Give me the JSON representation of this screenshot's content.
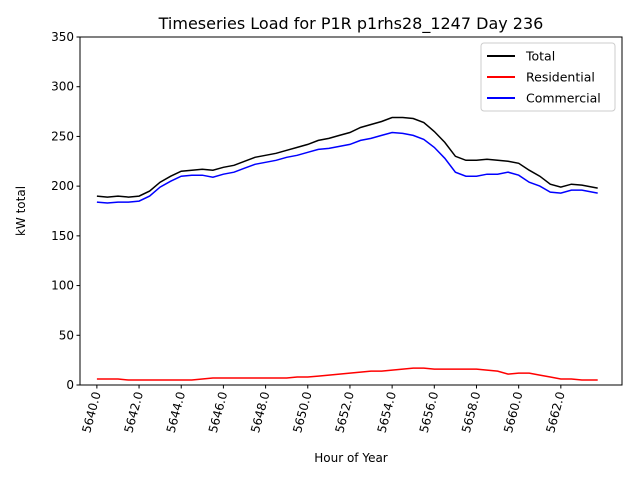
{
  "chart_data": {
    "type": "line",
    "title": "Timeseries Load for P1R p1rhs28_1247  Day 236",
    "xlabel": "Hour of Year",
    "ylabel": "kW total",
    "xlim": [
      5639.2,
      5664.9
    ],
    "ylim": [
      0,
      350
    ],
    "xticks": [
      5640,
      5642,
      5644,
      5646,
      5648,
      5650,
      5652,
      5654,
      5656,
      5658,
      5660,
      5662
    ],
    "xtick_labels": [
      "5640.0",
      "5642.0",
      "5644.0",
      "5646.0",
      "5648.0",
      "5650.0",
      "5652.0",
      "5654.0",
      "5656.0",
      "5658.0",
      "5660.0",
      "5662.0"
    ],
    "yticks": [
      0,
      50,
      100,
      150,
      200,
      250,
      300,
      350
    ],
    "ytick_labels": [
      "0",
      "50",
      "100",
      "150",
      "200",
      "250",
      "300",
      "350"
    ],
    "legend_placement": "top-right",
    "x": [
      5640,
      5640.5,
      5641,
      5641.5,
      5642,
      5642.5,
      5643,
      5643.5,
      5644,
      5644.5,
      5645,
      5645.5,
      5646,
      5646.5,
      5647,
      5647.5,
      5648,
      5648.5,
      5649,
      5649.5,
      5650,
      5650.5,
      5651,
      5651.5,
      5652,
      5652.5,
      5653,
      5653.5,
      5654,
      5654.5,
      5655,
      5655.5,
      5656,
      5656.5,
      5657,
      5657.5,
      5658,
      5658.5,
      5659,
      5659.5,
      5660,
      5660.5,
      5661,
      5661.5,
      5662,
      5662.5,
      5663,
      5663.75
    ],
    "series": [
      {
        "name": "Total",
        "color": "#000000",
        "values": [
          190,
          189,
          190,
          189,
          190,
          195,
          204,
          210,
          215,
          216,
          217,
          216,
          219,
          221,
          225,
          229,
          231,
          233,
          236,
          239,
          242,
          246,
          248,
          251,
          254,
          259,
          262,
          265,
          269,
          269,
          268,
          264,
          255,
          244,
          230,
          226,
          226,
          227,
          226,
          225,
          223,
          216,
          210,
          202,
          199,
          202,
          201,
          198
        ]
      },
      {
        "name": "Residential",
        "color": "#ff0000",
        "values": [
          6,
          6,
          6,
          5,
          5,
          5,
          5,
          5,
          5,
          5,
          6,
          7,
          7,
          7,
          7,
          7,
          7,
          7,
          7,
          8,
          8,
          9,
          10,
          11,
          12,
          13,
          14,
          14,
          15,
          16,
          17,
          17,
          16,
          16,
          16,
          16,
          16,
          15,
          14,
          11,
          12,
          12,
          10,
          8,
          6,
          6,
          5,
          5
        ]
      },
      {
        "name": "Commercial",
        "color": "#0000ff",
        "values": [
          184,
          183,
          184,
          184,
          185,
          190,
          199,
          205,
          210,
          211,
          211,
          209,
          212,
          214,
          218,
          222,
          224,
          226,
          229,
          231,
          234,
          237,
          238,
          240,
          242,
          246,
          248,
          251,
          254,
          253,
          251,
          247,
          239,
          228,
          214,
          210,
          210,
          212,
          212,
          214,
          211,
          204,
          200,
          194,
          193,
          196,
          196,
          193
        ]
      }
    ]
  }
}
